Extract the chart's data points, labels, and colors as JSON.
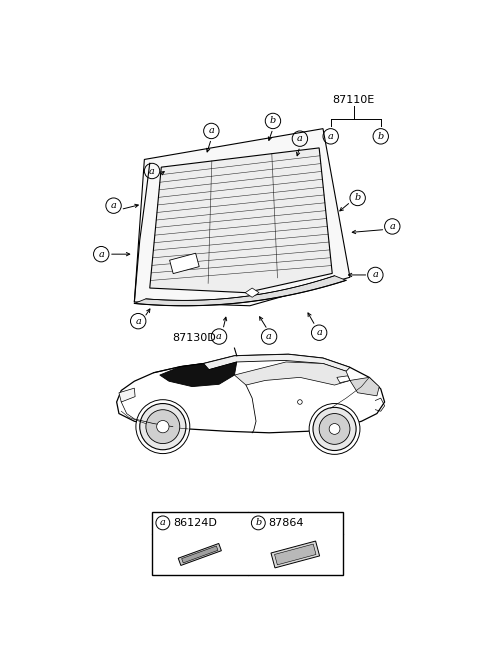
{
  "bg_color": "#ffffff",
  "part_label_87110E": "87110E",
  "part_label_87130D": "87130D",
  "legend_a_code": "86124D",
  "legend_b_code": "87864"
}
